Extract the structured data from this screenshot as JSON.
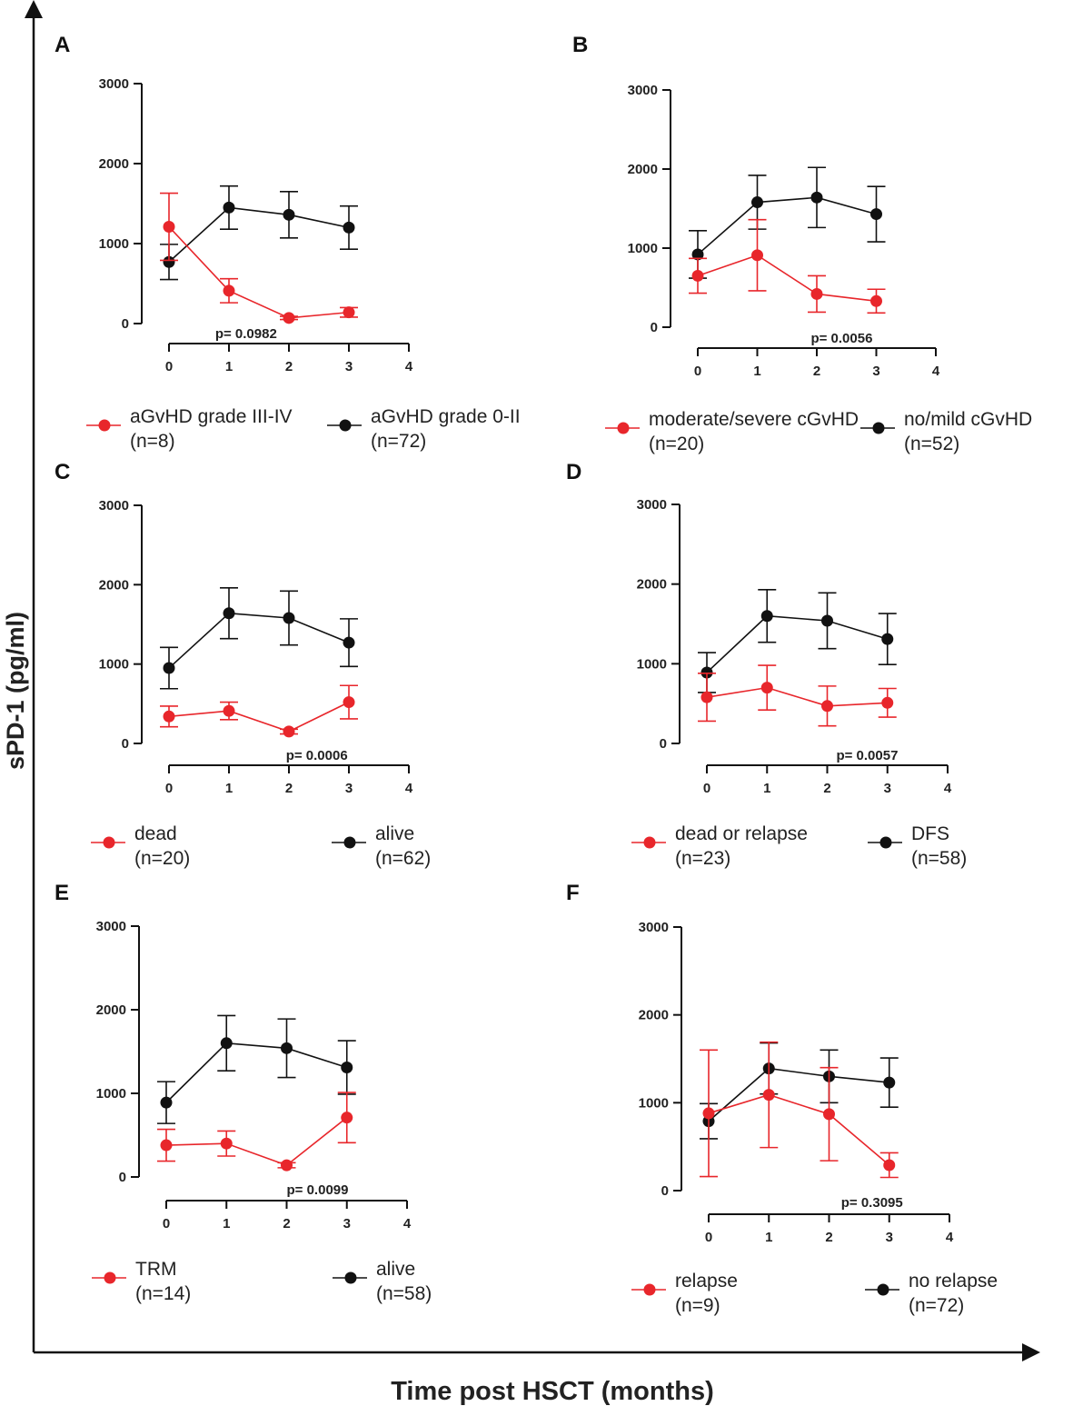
{
  "figure": {
    "y_axis_title": "sPD-1 (pg/ml)",
    "x_axis_title": "Time post HSCT (months)"
  },
  "colors": {
    "red": "#e8262b",
    "black": "#111111"
  },
  "chart_data": [
    {
      "panel": "A",
      "type": "line",
      "x": [
        0,
        1,
        2,
        3
      ],
      "xlim": [
        0,
        4
      ],
      "xticks": [
        "0",
        "1",
        "2",
        "3",
        "4"
      ],
      "ylim": [
        0,
        3000
      ],
      "yticks": [
        "0",
        "1000",
        "2000",
        "3000"
      ],
      "p_value": "p= 0.0982",
      "series": [
        {
          "name": "aGvHD grade III-IV",
          "n": "(n=8)",
          "color": "red",
          "values": [
            1210,
            410,
            70,
            140
          ],
          "err": [
            420,
            150,
            20,
            60
          ]
        },
        {
          "name": "aGvHD grade 0-II",
          "n": "(n=72)",
          "color": "black",
          "values": [
            770,
            1450,
            1360,
            1200
          ],
          "err": [
            220,
            270,
            290,
            270
          ]
        }
      ]
    },
    {
      "panel": "B",
      "type": "line",
      "x": [
        0,
        1,
        2,
        3
      ],
      "xlim": [
        0,
        4
      ],
      "xticks": [
        "0",
        "1",
        "2",
        "3",
        "4"
      ],
      "ylim": [
        0,
        3000
      ],
      "yticks": [
        "0",
        "1000",
        "2000",
        "3000"
      ],
      "p_value": "p= 0.0056",
      "series": [
        {
          "name": "moderate/severe cGvHD",
          "n": "(n=20)",
          "color": "red",
          "values": [
            650,
            910,
            420,
            330
          ],
          "err": [
            220,
            450,
            230,
            150
          ]
        },
        {
          "name": "no/mild cGvHD",
          "n": "(n=52)",
          "color": "black",
          "values": [
            920,
            1580,
            1640,
            1430
          ],
          "err": [
            300,
            340,
            380,
            350
          ]
        }
      ]
    },
    {
      "panel": "C",
      "type": "line",
      "x": [
        0,
        1,
        2,
        3
      ],
      "xlim": [
        0,
        4
      ],
      "xticks": [
        "0",
        "1",
        "2",
        "3",
        "4"
      ],
      "ylim": [
        0,
        3000
      ],
      "yticks": [
        "0",
        "1000",
        "2000",
        "3000"
      ],
      "p_value": "p= 0.0006",
      "series": [
        {
          "name": "dead",
          "n": "(n=20)",
          "color": "red",
          "values": [
            340,
            410,
            150,
            520
          ],
          "err": [
            130,
            110,
            30,
            210
          ]
        },
        {
          "name": "alive",
          "n": "(n=62)",
          "color": "black",
          "values": [
            950,
            1640,
            1580,
            1270
          ],
          "err": [
            260,
            320,
            340,
            300
          ]
        }
      ]
    },
    {
      "panel": "D",
      "type": "line",
      "x": [
        0,
        1,
        2,
        3
      ],
      "xlim": [
        0,
        4
      ],
      "xticks": [
        "0",
        "1",
        "2",
        "3",
        "4"
      ],
      "ylim": [
        0,
        3000
      ],
      "yticks": [
        "0",
        "1000",
        "2000",
        "3000"
      ],
      "p_value": "p= 0.0057",
      "series": [
        {
          "name": "dead or relapse",
          "n": "(n=23)",
          "color": "red",
          "values": [
            580,
            700,
            470,
            510
          ],
          "err": [
            300,
            280,
            250,
            180
          ]
        },
        {
          "name": "DFS",
          "n": "(n=58)",
          "color": "black",
          "values": [
            890,
            1600,
            1540,
            1310
          ],
          "err": [
            250,
            330,
            350,
            320
          ]
        }
      ]
    },
    {
      "panel": "E",
      "type": "line",
      "x": [
        0,
        1,
        2,
        3
      ],
      "xlim": [
        0,
        4
      ],
      "xticks": [
        "0",
        "1",
        "2",
        "3",
        "4"
      ],
      "ylim": [
        0,
        3000
      ],
      "yticks": [
        "0",
        "1000",
        "2000",
        "3000"
      ],
      "p_value": "p= 0.0099",
      "series": [
        {
          "name": "TRM",
          "n": "(n=14)",
          "color": "red",
          "values": [
            380,
            400,
            140,
            710
          ],
          "err": [
            190,
            150,
            30,
            300
          ]
        },
        {
          "name": "alive",
          "n": "(n=58)",
          "color": "black",
          "values": [
            890,
            1600,
            1540,
            1310
          ],
          "err": [
            250,
            330,
            350,
            320
          ]
        }
      ]
    },
    {
      "panel": "F",
      "type": "line",
      "x": [
        0,
        1,
        2,
        3
      ],
      "xlim": [
        0,
        4
      ],
      "xticks": [
        "0",
        "1",
        "2",
        "3",
        "4"
      ],
      "ylim": [
        0,
        3000
      ],
      "yticks": [
        "0",
        "1000",
        "2000",
        "3000"
      ],
      "p_value": "p= 0.3095",
      "series": [
        {
          "name": "relapse",
          "n": "(n=9)",
          "color": "red",
          "values": [
            880,
            1090,
            870,
            290
          ],
          "err": [
            720,
            600,
            530,
            140
          ]
        },
        {
          "name": "no relapse",
          "n": "(n=72)",
          "color": "black",
          "values": [
            790,
            1390,
            1300,
            1230
          ],
          "err": [
            200,
            290,
            300,
            280
          ]
        }
      ]
    }
  ]
}
